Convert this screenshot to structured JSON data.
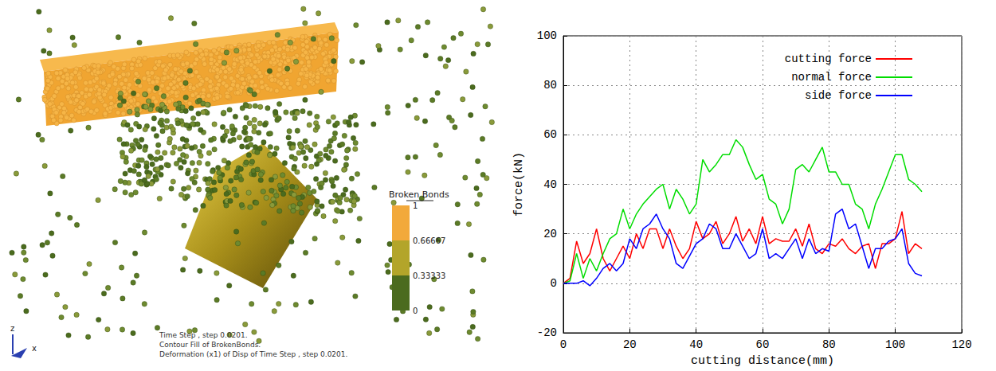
{
  "simulation_view": {
    "colorbar": {
      "title": "Broken Bonds",
      "range": [
        0,
        1
      ],
      "ticks": [
        1,
        0.66667,
        0.33333,
        0
      ],
      "colors": [
        "#4b6b1e",
        "#b3a52a",
        "#f2a93b"
      ]
    },
    "axis_letters": [
      "z",
      "x"
    ],
    "caption": [
      "Time Step , step 0.0201.",
      "Contour Fill of BrokenBonds.",
      "Deformation (x1) of Disp of Time Step , step 0.0201."
    ]
  },
  "chart_data": {
    "type": "line",
    "x_label": "cutting distance(mm)",
    "y_label": "force(kN)",
    "x": [
      0,
      2,
      4,
      6,
      8,
      10,
      12,
      14,
      16,
      18,
      20,
      22,
      24,
      26,
      28,
      30,
      32,
      34,
      36,
      38,
      40,
      42,
      44,
      46,
      48,
      50,
      52,
      54,
      56,
      58,
      60,
      62,
      64,
      66,
      68,
      70,
      72,
      74,
      76,
      78,
      80,
      82,
      84,
      86,
      88,
      90,
      92,
      94,
      96,
      98,
      100,
      102,
      104,
      106,
      108
    ],
    "series": [
      {
        "name": "cutting force",
        "color": "#ff0000",
        "values": [
          0,
          2,
          17,
          8,
          12,
          22,
          10,
          5,
          10,
          15,
          10,
          20,
          14,
          22,
          22,
          14,
          22,
          15,
          10,
          14,
          25,
          18,
          20,
          25,
          16,
          20,
          27,
          17,
          22,
          16,
          27,
          16,
          18,
          17,
          17,
          22,
          15,
          24,
          14,
          12,
          16,
          15,
          18,
          14,
          12,
          15,
          16,
          6,
          16,
          16,
          18,
          29,
          12,
          16,
          14
        ]
      },
      {
        "name": "normal force",
        "color": "#00dd00",
        "values": [
          0,
          1,
          12,
          2,
          10,
          5,
          12,
          18,
          20,
          30,
          22,
          28,
          32,
          35,
          38,
          40,
          30,
          38,
          34,
          28,
          32,
          50,
          45,
          48,
          52,
          52,
          58,
          55,
          48,
          42,
          44,
          34,
          32,
          24,
          30,
          46,
          48,
          45,
          50,
          55,
          45,
          45,
          40,
          40,
          32,
          30,
          22,
          32,
          38,
          45,
          52,
          52,
          42,
          40,
          37
        ]
      },
      {
        "name": "side force",
        "color": "#0000ff",
        "values": [
          0,
          0,
          0,
          1,
          -1,
          2,
          6,
          8,
          5,
          8,
          18,
          14,
          22,
          24,
          28,
          22,
          18,
          8,
          6,
          11,
          16,
          18,
          24,
          22,
          14,
          14,
          20,
          15,
          10,
          12,
          22,
          10,
          12,
          10,
          14,
          18,
          10,
          18,
          12,
          14,
          13,
          28,
          30,
          22,
          24,
          15,
          6,
          14,
          14,
          17,
          18,
          22,
          8,
          4,
          3
        ]
      }
    ],
    "xlim": [
      0,
      120
    ],
    "xticks": [
      0,
      20,
      40,
      60,
      80,
      100,
      120
    ],
    "ylim": [
      -20,
      100
    ],
    "yticks": [
      -20,
      0,
      20,
      40,
      60,
      80,
      100
    ],
    "grid": true,
    "legend": "top-right",
    "line_style": "solid"
  }
}
